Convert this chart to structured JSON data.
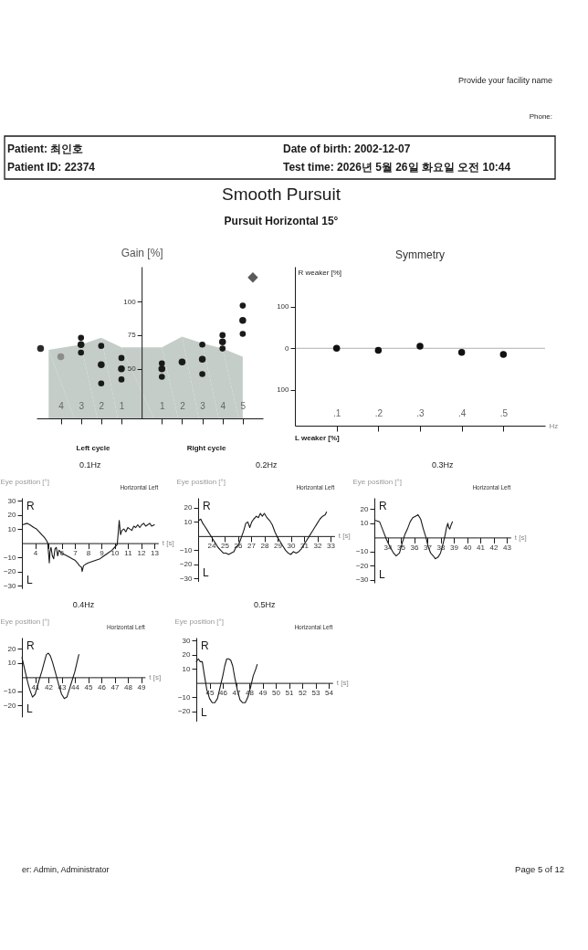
{
  "chart_data": [
    {
      "type": "other",
      "title": "Smooth Pursuit",
      "subtitle": "Pursuit Horizontal 15°",
      "annotations": [
        "Provide your facility name",
        "Phone:",
        "Patient: 최인호",
        "Patient ID: 22374",
        "Date of birth: 2002-12-07",
        "Test time: 2026년 5월 26일 화요일 오전 10:44"
      ]
    },
    {
      "type": "scatter",
      "ylabel": "Gain [%]",
      "annotations": [
        "Left cycle",
        "Right cycle"
      ],
      "xlim": [
        -5.2,
        6
      ],
      "xticks": [
        {
          "value": -4,
          "label": "4"
        },
        {
          "value": -3,
          "label": "3"
        },
        {
          "value": -2,
          "label": "2"
        },
        {
          "value": -1,
          "label": "1"
        },
        1,
        2,
        3,
        4,
        5
      ],
      "ylim": [
        13,
        126
      ],
      "yticks": [
        50,
        75,
        100
      ],
      "series": [
        {
          "type": "area",
          "color": "#c4cdc7",
          "x": [
            -4.6,
            -3,
            -2,
            -1,
            1,
            2,
            3,
            4,
            5
          ],
          "values": [
            64,
            68,
            73,
            66,
            66,
            74,
            69,
            65,
            59
          ]
        },
        {
          "marker": "circle",
          "colors": [
            "#2a2a2a",
            "#8c8c8c",
            "#1a1a1a",
            "#1a1a1a",
            "#1a1a1a",
            "#1a1a1a",
            "#1a1a1a",
            "#1a1a1a",
            "#1a1a1a",
            "#1a1a1a"
          ],
          "x": [
            -5,
            -4,
            -3,
            -2,
            -1,
            1,
            2,
            3,
            4,
            5
          ],
          "values": [
            65,
            59,
            68,
            53,
            50,
            50,
            55,
            57,
            70,
            86
          ]
        },
        {
          "marker": "circle",
          "color": "#1a1a1a",
          "x": [
            -3,
            -2,
            -1,
            1,
            3,
            4,
            5
          ],
          "values": [
            73,
            67,
            58,
            54,
            68,
            75,
            97
          ]
        },
        {
          "marker": "circle",
          "color": "#1a1a1a",
          "x": [
            -3,
            -2,
            -1,
            1,
            3,
            4,
            5
          ],
          "values": [
            62,
            39,
            42,
            44,
            46,
            65,
            76
          ]
        },
        {
          "marker": "diamond",
          "color": "#5a5a5a",
          "x": [
            5.5
          ],
          "values": [
            118
          ]
        }
      ]
    },
    {
      "type": "scatter",
      "title": "Symmetry",
      "ylabel": "R weaker [%]",
      "xlabel": "Hz",
      "annotations": [
        "L weaker [%]"
      ],
      "xlim": [
        0,
        0.6
      ],
      "xticks": [
        {
          "value": 0.1,
          "label": ".1"
        },
        {
          "value": 0.2,
          "label": ".2"
        },
        {
          "value": 0.3,
          "label": ".3"
        },
        {
          "value": 0.4,
          "label": ".4"
        },
        {
          "value": 0.5,
          "label": ".5"
        }
      ],
      "ylim": [
        -187,
        197
      ],
      "yticks": [
        {
          "value": -100,
          "label": "100"
        },
        0,
        100
      ],
      "marker": "circle",
      "color": "#111111",
      "x": [
        0.1,
        0.2,
        0.3,
        0.4,
        0.5
      ],
      "values": [
        0,
        -5,
        5,
        -10,
        -15
      ],
      "ref_lines": [
        {
          "axis": "y",
          "value": 0,
          "color": "#b0b0b0"
        }
      ]
    },
    {
      "type": "line",
      "title": "0.1Hz",
      "subtitle": "Horizontal Left",
      "ylabel": "Eye position [°]",
      "xlabel": "t [s]",
      "annotations": [
        "R",
        "L"
      ],
      "xlim": [
        3,
        13.3
      ],
      "xticks": [
        4,
        {
          "value": 5,
          "label": null
        },
        6,
        7,
        8,
        9,
        10,
        11,
        12,
        13
      ],
      "ylim": [
        -32,
        32
      ],
      "yticks": [
        30,
        20,
        10,
        -10,
        -20,
        -30
      ],
      "color": "#1a1a1a",
      "x": [
        3.05,
        3.4,
        3.6,
        3.9,
        4.1,
        4.3,
        4.5,
        4.7,
        4.85,
        4.95,
        5.02,
        5.07,
        5.12,
        5.2,
        5.3,
        5.4,
        5.5,
        5.6,
        5.7,
        5.8,
        5.9,
        6.0,
        6.2,
        6.4,
        6.6,
        6.8,
        7.0,
        7.2,
        7.35,
        7.5,
        7.55,
        7.65,
        7.8,
        8.0,
        8.3,
        8.6,
        8.9,
        9.2,
        9.5,
        9.8,
        10.0,
        10.2,
        10.28,
        10.35,
        10.45,
        10.55,
        10.7,
        10.85,
        11.0,
        11.15,
        11.3,
        11.45,
        11.6,
        11.75,
        11.9,
        12.05,
        12.2,
        12.35,
        12.5,
        12.65,
        12.8,
        13.0
      ],
      "values": [
        13,
        14,
        13,
        11,
        10,
        8,
        6,
        4,
        2,
        0,
        -8,
        -14,
        -6,
        -3,
        -9,
        -11,
        -4,
        -3,
        -9,
        -5,
        -6,
        -7,
        -8,
        -9,
        -10,
        -11,
        -12,
        -14,
        -16,
        -17,
        -20,
        -16,
        -15,
        -14,
        -13,
        -12,
        -11,
        -9,
        -7,
        -5,
        -3,
        -1,
        8,
        16,
        6,
        9,
        10,
        8,
        11,
        10,
        9,
        12,
        11,
        13,
        11,
        13,
        14,
        12,
        13,
        14,
        12,
        13
      ]
    },
    {
      "type": "line",
      "title": "0.2Hz",
      "subtitle": "Horizontal Left",
      "ylabel": "Eye position [°]",
      "xlabel": "t [s]",
      "annotations": [
        "R",
        "L"
      ],
      "xlim": [
        23,
        33.3
      ],
      "xticks": [
        24,
        25,
        26,
        27,
        28,
        29,
        30,
        31,
        32,
        33
      ],
      "ylim": [
        -32,
        27
      ],
      "yticks": [
        20,
        10,
        -10,
        -20,
        -30
      ],
      "color": "#1a1a1a",
      "x": [
        23.05,
        23.2,
        23.35,
        23.5,
        23.7,
        23.9,
        24.1,
        24.3,
        24.5,
        24.7,
        24.9,
        25.1,
        25.3,
        25.5,
        25.7,
        25.85,
        26.0,
        26.15,
        26.3,
        26.45,
        26.6,
        26.75,
        26.9,
        27.05,
        27.2,
        27.4,
        27.55,
        27.7,
        27.85,
        28.0,
        28.2,
        28.4,
        28.6,
        28.8,
        29.0,
        29.2,
        29.4,
        29.6,
        29.8,
        30.0,
        30.2,
        30.4,
        30.6,
        30.8,
        31.0,
        31.2,
        31.4,
        31.6,
        31.8,
        32.0,
        32.2,
        32.4,
        32.6,
        32.7
      ],
      "values": [
        11,
        12,
        9,
        7,
        4,
        1,
        -2,
        -5,
        -8,
        -10,
        -12,
        -12,
        -13,
        -12,
        -11,
        -8,
        -7,
        -4,
        0,
        4,
        9,
        10,
        6,
        10,
        12,
        14,
        13,
        16,
        14,
        16,
        13,
        11,
        8,
        3,
        -1,
        -4,
        -7,
        -10,
        -12,
        -13,
        -11,
        -12,
        -11,
        -9,
        -6,
        -3,
        0,
        3,
        6,
        9,
        12,
        14,
        15,
        17
      ]
    },
    {
      "type": "line",
      "title": "0.3Hz",
      "subtitle": "Horizontal Left",
      "ylabel": "Eye position [°]",
      "xlabel": "t [s]",
      "annotations": [
        "R",
        "L"
      ],
      "xlim": [
        33,
        43.3
      ],
      "xticks": [
        34,
        35,
        36,
        37,
        38,
        39,
        40,
        41,
        42,
        43
      ],
      "ylim": [
        -32,
        28
      ],
      "yticks": [
        20,
        10,
        -10,
        -20,
        -30
      ],
      "color": "#1a1a1a",
      "x": [
        33.1,
        33.4,
        33.65,
        33.9,
        34.15,
        34.45,
        34.65,
        34.9,
        35.1,
        35.3,
        35.5,
        35.7,
        35.9,
        36.1,
        36.3,
        36.5,
        36.7,
        36.9,
        37.05,
        37.25,
        37.45,
        37.6,
        37.8,
        38.0,
        38.2,
        38.35,
        38.45,
        38.55,
        38.62,
        38.7,
        38.8,
        38.9
      ],
      "values": [
        12,
        11,
        5,
        -1,
        -6,
        -11,
        -13,
        -11,
        -4,
        2,
        6,
        11,
        14,
        15,
        16,
        13,
        6,
        0,
        -6,
        -11,
        -13,
        -15,
        -14,
        -11,
        -4,
        2,
        7,
        10,
        7,
        6,
        9,
        11
      ]
    },
    {
      "type": "line",
      "title": "0.4Hz",
      "subtitle": "Horizontal Left",
      "ylabel": "Eye position [°]",
      "xlabel": "t [s]",
      "annotations": [
        "R",
        "L"
      ],
      "xlim": [
        40,
        49.3
      ],
      "xticks": [
        41,
        42,
        43,
        44,
        45,
        46,
        47,
        48,
        49
      ],
      "ylim": [
        -28,
        28
      ],
      "yticks": [
        20,
        10,
        -10,
        -20
      ],
      "color": "#1a1a1a",
      "x": [
        40.0,
        40.15,
        40.3,
        40.45,
        40.6,
        40.8,
        41.0,
        41.15,
        41.3,
        41.5,
        41.7,
        41.85,
        42.0,
        42.15,
        42.3,
        42.45,
        42.6,
        42.8,
        43.0,
        43.2,
        43.4,
        43.6,
        43.8,
        44.0,
        44.15,
        44.3
      ],
      "values": [
        14,
        8,
        2,
        -4,
        -9,
        -14,
        -12,
        -7,
        -2,
        4,
        11,
        16,
        17,
        15,
        11,
        6,
        1,
        -6,
        -12,
        -15,
        -14,
        -8,
        -2,
        4,
        10,
        16
      ]
    },
    {
      "type": "line",
      "title": "0.5Hz",
      "subtitle": "Horizontal Left",
      "ylabel": "Eye position [°]",
      "xlabel": "t [s]",
      "annotations": [
        "R",
        "L"
      ],
      "xlim": [
        44,
        54.3
      ],
      "xticks": [
        45,
        46,
        47,
        48,
        49,
        50,
        51,
        52,
        53,
        54
      ],
      "ylim": [
        -27,
        32
      ],
      "yticks": [
        30,
        20,
        10,
        -10,
        -20
      ],
      "color": "#1a1a1a",
      "x": [
        44.0,
        44.15,
        44.3,
        44.45,
        44.6,
        44.8,
        45.0,
        45.2,
        45.4,
        45.6,
        45.8,
        46.0,
        46.15,
        46.3,
        46.45,
        46.6,
        46.75,
        46.9,
        47.1,
        47.3,
        47.5,
        47.7,
        47.9,
        48.1,
        48.3,
        48.5,
        48.6
      ],
      "values": [
        15,
        17,
        15,
        15,
        6,
        -5,
        -11,
        -14,
        -14,
        -11,
        -3,
        5,
        12,
        17,
        17,
        16,
        12,
        4,
        -5,
        -12,
        -14,
        -14,
        -10,
        -3,
        5,
        10,
        13
      ]
    },
    {
      "type": "other",
      "annotations": [
        "er: Admin, Administrator",
        "Page 5 of 12"
      ]
    }
  ]
}
